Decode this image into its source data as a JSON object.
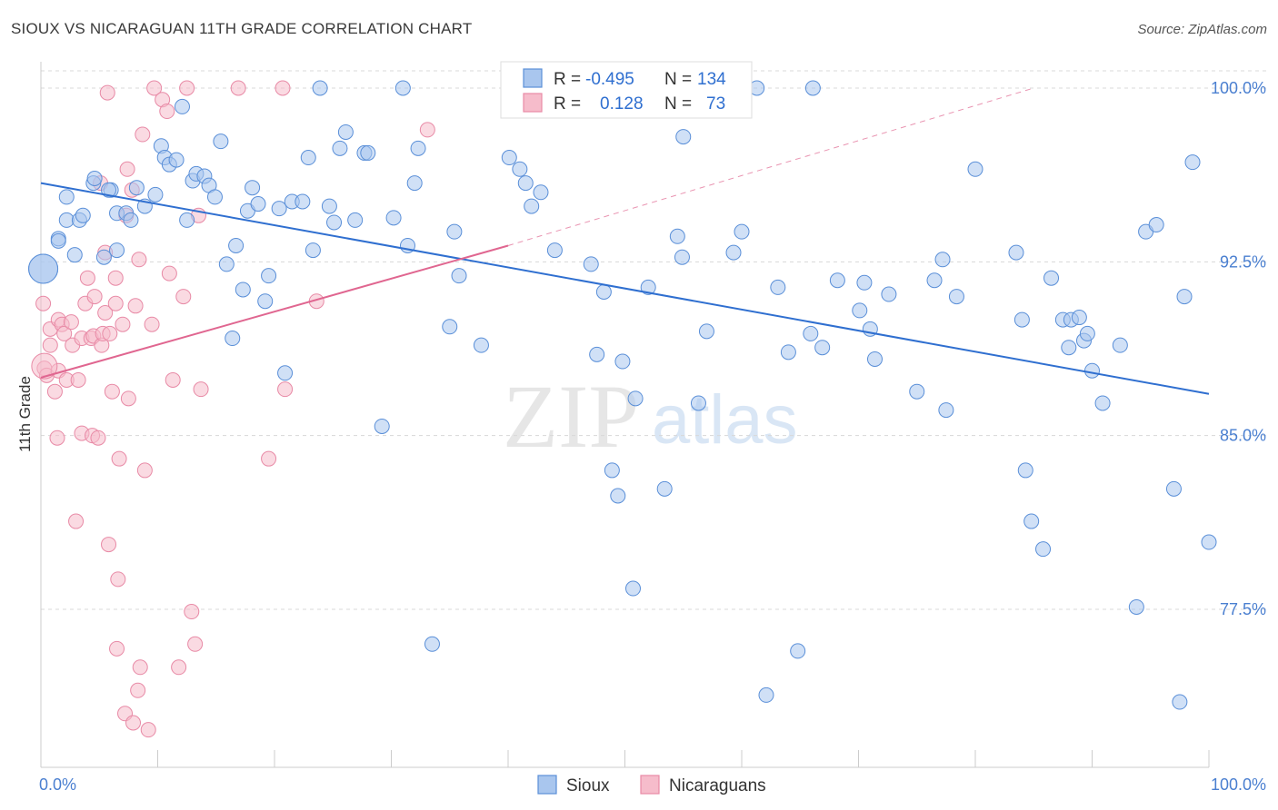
{
  "title": "SIOUX VS NICARAGUAN 11TH GRADE CORRELATION CHART",
  "source": "Source: ZipAtlas.com",
  "watermark": {
    "zip": "ZIP",
    "atlas": "atlas"
  },
  "stats_legend": {
    "r_label": "R =",
    "n_label": "N =",
    "rows": [
      {
        "series": "Sioux",
        "r": "-0.495",
        "n": "134"
      },
      {
        "series": "Nicaraguans",
        "r": "0.128",
        "n": "73"
      }
    ]
  },
  "bottom_legend": [
    "Sioux",
    "Nicaraguans"
  ],
  "colors": {
    "sioux_fill": "#a9c6ee",
    "sioux_stroke": "#5a8fd8",
    "sioux_line": "#2f6fd0",
    "nica_fill": "#f6bccb",
    "nica_stroke": "#e88aa6",
    "nica_line": "#e06690",
    "grid": "#d8d8d8",
    "axis_text": "#4a7fd0"
  },
  "chart_data": {
    "type": "scatter",
    "title": "SIOUX VS NICARAGUAN 11TH GRADE CORRELATION CHART",
    "xlabel": "",
    "ylabel": "11th Grade",
    "xlim": [
      0,
      100
    ],
    "ylim": [
      71,
      100.5
    ],
    "x_tick_labels": [
      "0.0%",
      "100.0%"
    ],
    "y_ticks": [
      77.5,
      85.0,
      92.5,
      100.0
    ],
    "y_tick_labels": [
      "77.5%",
      "85.0%",
      "92.5%",
      "100.0%"
    ],
    "legend": [
      "Sioux",
      "Nicaraguans"
    ],
    "series": [
      {
        "name": "Sioux",
        "r": -0.495,
        "n": 134,
        "trend": {
          "x": [
            0,
            100
          ],
          "y": [
            95.9,
            86.8
          ]
        },
        "points": [
          [
            1.5,
            93.5
          ],
          [
            1.5,
            93.4
          ],
          [
            2.2,
            94.3
          ],
          [
            2.2,
            95.3
          ],
          [
            2.9,
            92.8
          ],
          [
            3.3,
            94.3
          ],
          [
            3.6,
            94.5
          ],
          [
            4.5,
            95.9
          ],
          [
            4.6,
            96.1
          ],
          [
            5.4,
            92.7
          ],
          [
            6.0,
            95.6
          ],
          [
            6.5,
            93.0
          ],
          [
            6.5,
            94.6
          ],
          [
            7.3,
            94.6
          ],
          [
            7.7,
            94.3
          ],
          [
            8.2,
            95.7
          ],
          [
            8.9,
            94.9
          ],
          [
            9.8,
            95.4
          ],
          [
            10.3,
            97.5
          ],
          [
            10.6,
            97.0
          ],
          [
            11.0,
            96.7
          ],
          [
            11.6,
            96.9
          ],
          [
            12.1,
            99.2
          ],
          [
            12.5,
            94.3
          ],
          [
            13.0,
            96.0
          ],
          [
            13.3,
            96.3
          ],
          [
            14.0,
            96.2
          ],
          [
            14.4,
            95.8
          ],
          [
            14.9,
            95.3
          ],
          [
            15.4,
            97.7
          ],
          [
            15.9,
            92.4
          ],
          [
            16.4,
            89.2
          ],
          [
            16.7,
            93.2
          ],
          [
            17.3,
            91.3
          ],
          [
            17.7,
            94.7
          ],
          [
            18.1,
            95.7
          ],
          [
            18.6,
            95.0
          ],
          [
            19.2,
            90.8
          ],
          [
            19.5,
            91.9
          ],
          [
            20.4,
            94.8
          ],
          [
            20.9,
            87.7
          ],
          [
            21.5,
            95.1
          ],
          [
            22.4,
            95.1
          ],
          [
            22.9,
            97.0
          ],
          [
            23.3,
            93.0
          ],
          [
            23.9,
            100.0
          ],
          [
            24.7,
            94.9
          ],
          [
            25.1,
            94.2
          ],
          [
            25.6,
            97.4
          ],
          [
            26.1,
            98.1
          ],
          [
            26.9,
            94.3
          ],
          [
            27.7,
            97.2
          ],
          [
            28.0,
            97.2
          ],
          [
            29.2,
            85.4
          ],
          [
            30.2,
            94.4
          ],
          [
            31.0,
            100.0
          ],
          [
            31.4,
            93.2
          ],
          [
            32.0,
            95.9
          ],
          [
            32.3,
            97.4
          ],
          [
            33.5,
            76.0
          ],
          [
            35.0,
            89.7
          ],
          [
            35.4,
            93.8
          ],
          [
            35.8,
            91.9
          ],
          [
            37.7,
            88.9
          ],
          [
            40.1,
            97.0
          ],
          [
            41.0,
            96.5
          ],
          [
            41.5,
            95.9
          ],
          [
            42.0,
            94.9
          ],
          [
            42.8,
            95.5
          ],
          [
            44.0,
            93.0
          ],
          [
            44.8,
            100.0
          ],
          [
            47.1,
            92.4
          ],
          [
            47.6,
            88.5
          ],
          [
            48.2,
            91.2
          ],
          [
            48.9,
            83.5
          ],
          [
            49.4,
            82.4
          ],
          [
            49.8,
            88.2
          ],
          [
            50.7,
            78.4
          ],
          [
            50.9,
            86.6
          ],
          [
            52.0,
            91.4
          ],
          [
            53.4,
            82.7
          ],
          [
            54.5,
            93.6
          ],
          [
            54.9,
            92.7
          ],
          [
            55.0,
            97.9
          ],
          [
            56.3,
            86.4
          ],
          [
            57.0,
            89.5
          ],
          [
            59.3,
            92.9
          ],
          [
            60.0,
            93.8
          ],
          [
            61.3,
            100.0
          ],
          [
            62.1,
            73.8
          ],
          [
            63.1,
            91.4
          ],
          [
            64.0,
            88.6
          ],
          [
            64.8,
            75.7
          ],
          [
            65.9,
            89.4
          ],
          [
            66.1,
            100.0
          ],
          [
            66.9,
            88.8
          ],
          [
            68.2,
            91.7
          ],
          [
            70.1,
            90.4
          ],
          [
            70.5,
            91.6
          ],
          [
            71.0,
            89.6
          ],
          [
            71.4,
            88.3
          ],
          [
            72.6,
            91.1
          ],
          [
            75.0,
            86.9
          ],
          [
            76.5,
            91.7
          ],
          [
            77.2,
            92.6
          ],
          [
            77.5,
            86.1
          ],
          [
            78.4,
            91.0
          ],
          [
            80.0,
            96.5
          ],
          [
            83.5,
            92.9
          ],
          [
            84.0,
            90.0
          ],
          [
            84.3,
            83.5
          ],
          [
            84.8,
            81.3
          ],
          [
            85.8,
            80.1
          ],
          [
            86.5,
            91.8
          ],
          [
            87.5,
            90.0
          ],
          [
            88.0,
            88.8
          ],
          [
            88.2,
            90.0
          ],
          [
            88.9,
            90.1
          ],
          [
            89.3,
            89.1
          ],
          [
            89.6,
            89.4
          ],
          [
            90.0,
            87.8
          ],
          [
            90.9,
            86.4
          ],
          [
            92.4,
            88.9
          ],
          [
            93.8,
            77.6
          ],
          [
            94.6,
            93.8
          ],
          [
            95.5,
            94.1
          ],
          [
            97.0,
            82.7
          ],
          [
            97.5,
            73.5
          ],
          [
            97.9,
            91.0
          ],
          [
            98.6,
            96.8
          ],
          [
            100.0,
            80.4
          ],
          [
            0.2,
            92.2
          ],
          [
            0.2,
            92.2
          ],
          [
            5.8,
            95.6
          ]
        ]
      },
      {
        "name": "Nicaraguans",
        "r": 0.128,
        "n": 73,
        "trend": {
          "x": [
            0,
            40
          ],
          "y": [
            87.5,
            93.2
          ],
          "dashed_to": {
            "x": 85,
            "y": 100.0
          }
        },
        "points": [
          [
            0.2,
            90.7
          ],
          [
            0.3,
            87.9
          ],
          [
            0.5,
            87.6
          ],
          [
            0.8,
            89.6
          ],
          [
            0.8,
            88.9
          ],
          [
            1.2,
            86.9
          ],
          [
            1.4,
            84.9
          ],
          [
            1.5,
            90.0
          ],
          [
            1.5,
            87.8
          ],
          [
            1.8,
            89.8
          ],
          [
            2.0,
            89.4
          ],
          [
            2.2,
            87.4
          ],
          [
            2.6,
            89.9
          ],
          [
            2.7,
            88.9
          ],
          [
            3.0,
            81.3
          ],
          [
            3.2,
            87.4
          ],
          [
            3.5,
            85.1
          ],
          [
            3.5,
            89.2
          ],
          [
            3.8,
            90.7
          ],
          [
            4.0,
            91.8
          ],
          [
            4.3,
            89.2
          ],
          [
            4.4,
            85.0
          ],
          [
            4.5,
            89.3
          ],
          [
            4.6,
            91.0
          ],
          [
            4.9,
            84.9
          ],
          [
            5.1,
            95.9
          ],
          [
            5.2,
            88.9
          ],
          [
            5.3,
            89.4
          ],
          [
            5.5,
            92.9
          ],
          [
            5.5,
            90.3
          ],
          [
            5.7,
            99.8
          ],
          [
            5.8,
            80.3
          ],
          [
            5.9,
            89.4
          ],
          [
            6.1,
            86.9
          ],
          [
            6.4,
            91.8
          ],
          [
            6.4,
            90.7
          ],
          [
            6.5,
            75.8
          ],
          [
            6.6,
            78.8
          ],
          [
            6.7,
            84.0
          ],
          [
            7.0,
            89.8
          ],
          [
            7.2,
            73.0
          ],
          [
            7.3,
            94.5
          ],
          [
            7.4,
            96.5
          ],
          [
            7.5,
            86.6
          ],
          [
            7.8,
            95.6
          ],
          [
            7.9,
            72.6
          ],
          [
            8.1,
            90.6
          ],
          [
            8.3,
            74.0
          ],
          [
            8.4,
            92.6
          ],
          [
            8.5,
            75.0
          ],
          [
            8.7,
            98.0
          ],
          [
            8.9,
            83.5
          ],
          [
            9.2,
            72.3
          ],
          [
            9.5,
            89.8
          ],
          [
            9.7,
            100.0
          ],
          [
            10.4,
            99.5
          ],
          [
            10.8,
            99.0
          ],
          [
            11.0,
            92.0
          ],
          [
            11.3,
            87.4
          ],
          [
            11.8,
            75.0
          ],
          [
            12.2,
            91.0
          ],
          [
            12.5,
            100.0
          ],
          [
            12.9,
            77.4
          ],
          [
            13.2,
            76.0
          ],
          [
            13.5,
            94.5
          ],
          [
            13.7,
            87.0
          ],
          [
            16.9,
            100.0
          ],
          [
            19.5,
            84.0
          ],
          [
            20.7,
            100.0
          ],
          [
            20.9,
            87.0
          ],
          [
            23.6,
            90.8
          ],
          [
            33.1,
            98.2
          ],
          [
            0.3,
            88.0
          ]
        ]
      }
    ]
  }
}
